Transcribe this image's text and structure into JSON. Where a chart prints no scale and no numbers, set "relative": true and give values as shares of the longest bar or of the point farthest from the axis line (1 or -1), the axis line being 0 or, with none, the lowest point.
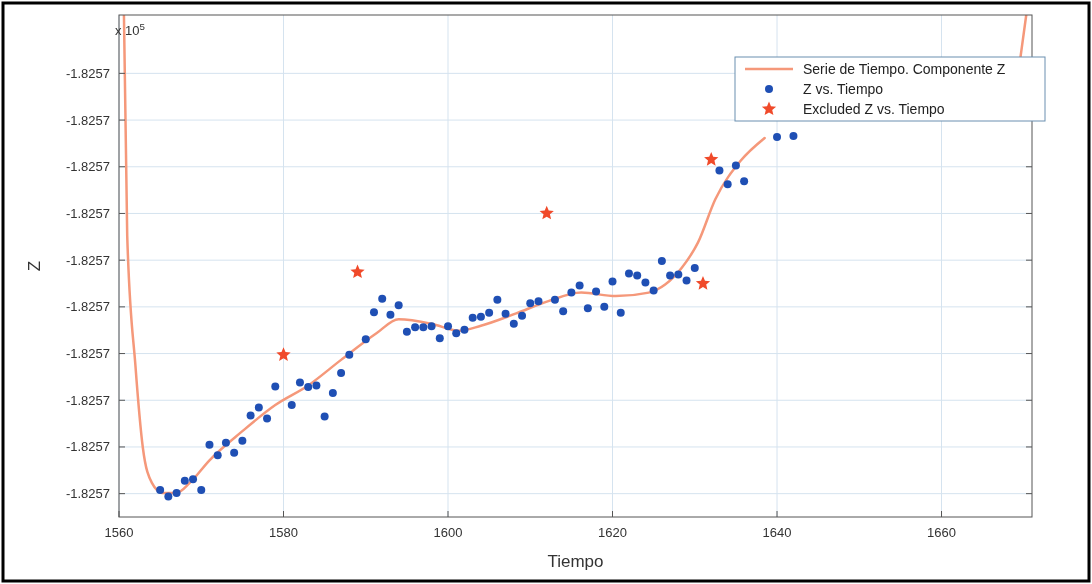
{
  "chart_data": {
    "type": "scatter",
    "relative": true,
    "xlabel": "Tiempo",
    "ylabel": "Z",
    "annotations": [
      "x 10$^{5}$",
      "-1.8257",
      "-1.8257",
      "-1.8257",
      "-1.8257",
      "-1.8257",
      "-1.8257",
      "-1.8257",
      "-1.8257",
      "-1.8257",
      "-1.8257"
    ],
    "xlim": [
      1560,
      1671
    ],
    "xticks": [
      1560,
      1580,
      1600,
      1620,
      1640,
      1660
    ],
    "grid": true,
    "legend": "top right",
    "series": [
      {
        "name": "Serie de Tiempo. Componente Z",
        "type": "line",
        "color": "#f5987a",
        "line_style": "solid",
        "marker": "none",
        "x": [
          1560.6,
          1561,
          1562,
          1562.9,
          1564,
          1565.3,
          1567,
          1568.6,
          1571,
          1575,
          1579,
          1583,
          1587,
          1591.3,
          1594,
          1598,
          1601.3,
          1604,
          1608.2,
          1612.2,
          1616.2,
          1620.4,
          1624.4,
          1626.4,
          1628.4,
          1630.4,
          1632.5,
          1635.6,
          1638.5,
          1650,
          1669.6,
          1670.3
        ],
        "values": [
          1,
          0.56,
          0.301,
          0.138,
          0.068,
          0.048,
          0.048,
          0.068,
          0.113,
          0.171,
          0.223,
          0.262,
          0.313,
          0.366,
          0.394,
          0.385,
          0.371,
          0.381,
          0.405,
          0.43,
          0.447,
          0.44,
          0.447,
          0.463,
          0.496,
          0.547,
          0.633,
          0.71,
          0.755,
          null,
          0.916,
          1
        ]
      },
      {
        "name": "Z vs. Tiempo",
        "color": "#1f4fb4",
        "marker": "circle",
        "x": [
          1565,
          1566,
          1567,
          1568,
          1569,
          1570,
          1571,
          1572,
          1573,
          1574,
          1575,
          1576,
          1577,
          1578,
          1579,
          1581,
          1582,
          1583,
          1584,
          1585,
          1586,
          1587,
          1588,
          1590,
          1591,
          1592,
          1593,
          1594,
          1595,
          1596,
          1597,
          1598,
          1599,
          1600,
          1601,
          1602,
          1603,
          1604,
          1605,
          1606,
          1607,
          1608,
          1609,
          1610,
          1611,
          1613,
          1614,
          1615,
          1616,
          1617,
          1618,
          1619,
          1620,
          1621,
          1622,
          1623,
          1624,
          1625,
          1626,
          1627,
          1628,
          1629,
          1630,
          1633,
          1634,
          1635,
          1636,
          1640,
          1642
        ],
        "values": [
          0.054,
          0.041,
          0.048,
          0.072,
          0.075,
          0.054,
          0.144,
          0.123,
          0.148,
          0.128,
          0.152,
          0.202,
          0.218,
          0.196,
          0.26,
          0.223,
          0.268,
          0.259,
          0.262,
          0.2,
          0.247,
          0.287,
          0.323,
          0.354,
          0.408,
          0.435,
          0.403,
          0.422,
          0.369,
          0.378,
          0.378,
          0.38,
          0.356,
          0.38,
          0.366,
          0.373,
          0.397,
          0.399,
          0.407,
          0.433,
          0.405,
          0.385,
          0.401,
          0.426,
          0.43,
          0.433,
          0.41,
          0.447,
          0.461,
          0.416,
          0.449,
          0.419,
          0.469,
          0.407,
          0.485,
          0.481,
          0.467,
          0.451,
          0.51,
          0.481,
          0.483,
          0.471,
          0.496,
          0.69,
          0.663,
          0.7,
          0.669,
          0.757,
          0.759
        ]
      },
      {
        "name": "Excluded Z vs. Tiempo",
        "color": "#f04a2a",
        "marker": "star",
        "x": [
          1580,
          1589,
          1612,
          1631,
          1632
        ],
        "values": [
          0.323,
          0.488,
          0.605,
          0.465,
          0.712
        ]
      }
    ]
  }
}
